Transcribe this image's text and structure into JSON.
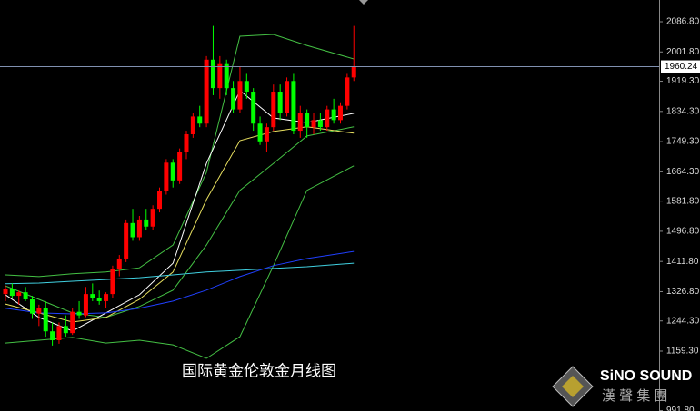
{
  "chart_data": {
    "type": "candlestick",
    "annotation": "国际黄金伦敦金月线图",
    "up_color": "#ff0000",
    "down_color": "#00ff00",
    "open": [
      1320,
      1335,
      1315,
      1325,
      1305,
      1265,
      1280,
      1215,
      1190,
      1230,
      1210,
      1270,
      1260,
      1320,
      1310,
      1300,
      1320,
      1390,
      1420,
      1520,
      1480,
      1530,
      1510,
      1560,
      1610,
      1690,
      1640,
      1720,
      1770,
      1820,
      1800,
      1980,
      1900,
      1970,
      1900,
      1840,
      1920,
      1890,
      1800,
      1750,
      1790,
      1890,
      1830,
      1920,
      1780,
      1830,
      1790,
      1810,
      1790,
      1840,
      1810,
      1850,
      1930
    ],
    "high": [
      1345,
      1350,
      1330,
      1340,
      1315,
      1290,
      1300,
      1240,
      1240,
      1260,
      1280,
      1300,
      1340,
      1350,
      1330,
      1325,
      1400,
      1430,
      1530,
      1560,
      1540,
      1560,
      1570,
      1620,
      1700,
      1700,
      1730,
      1780,
      1830,
      1850,
      1990,
      2075,
      1990,
      1980,
      1920,
      1960,
      1940,
      1900,
      1820,
      1800,
      1910,
      1910,
      1930,
      1940,
      1850,
      1840,
      1830,
      1830,
      1850,
      1870,
      1860,
      1940,
      2075
    ],
    "low": [
      1300,
      1310,
      1290,
      1300,
      1250,
      1230,
      1200,
      1175,
      1180,
      1200,
      1205,
      1250,
      1255,
      1300,
      1290,
      1280,
      1310,
      1370,
      1410,
      1470,
      1470,
      1500,
      1500,
      1550,
      1600,
      1620,
      1630,
      1700,
      1760,
      1790,
      1790,
      1880,
      1870,
      1880,
      1830,
      1830,
      1870,
      1780,
      1740,
      1720,
      1780,
      1810,
      1820,
      1770,
      1760,
      1760,
      1770,
      1780,
      1780,
      1800,
      1800,
      1840,
      1920
    ],
    "close": [
      1335,
      1315,
      1325,
      1305,
      1265,
      1280,
      1215,
      1190,
      1230,
      1210,
      1270,
      1260,
      1320,
      1310,
      1300,
      1320,
      1390,
      1420,
      1520,
      1480,
      1530,
      1510,
      1560,
      1610,
      1690,
      1640,
      1720,
      1770,
      1820,
      1800,
      1980,
      1900,
      1970,
      1900,
      1840,
      1920,
      1890,
      1800,
      1750,
      1790,
      1890,
      1830,
      1920,
      1780,
      1830,
      1790,
      1810,
      1790,
      1840,
      1810,
      1850,
      1930,
      1960
    ],
    "lines": [
      {
        "color": "#44c044",
        "x": [
          0,
          5,
          10,
          15,
          20,
          25,
          30,
          35,
          40,
          45,
          52
        ],
        "values": [
          1374,
          1369,
          1377,
          1382,
          1394,
          1458,
          1663,
          2046,
          2051,
          2020,
          1982
        ]
      },
      {
        "color": "#44c044",
        "x": [
          0,
          5,
          10,
          15,
          20,
          25,
          30,
          35,
          40,
          45,
          52
        ],
        "values": [
          1182,
          1190,
          1198,
          1182,
          1190,
          1177,
          1139,
          1200,
          1400,
          1612,
          1681
        ]
      },
      {
        "color": "#44c044",
        "x": [
          0,
          5,
          10,
          15,
          20,
          25,
          30,
          35,
          40,
          45,
          52
        ],
        "values": [
          1343,
          1305,
          1267,
          1254,
          1285,
          1331,
          1458,
          1612,
          1688,
          1765,
          1791
        ]
      },
      {
        "color": "#ffffff",
        "x": [
          0,
          5,
          10,
          15,
          20,
          25,
          30,
          35,
          40,
          45,
          52
        ],
        "values": [
          1318,
          1254,
          1216,
          1267,
          1318,
          1407,
          1688,
          1893,
          1816,
          1803,
          1829
        ]
      },
      {
        "color": "#e8e060",
        "x": [
          0,
          5,
          10,
          15,
          20,
          25,
          30,
          35,
          40,
          45,
          52
        ],
        "values": [
          1292,
          1267,
          1241,
          1254,
          1305,
          1382,
          1586,
          1752,
          1778,
          1791,
          1773
        ]
      },
      {
        "color": "#40d0e0",
        "x": [
          0,
          5,
          10,
          15,
          20,
          25,
          30,
          35,
          40,
          45,
          52
        ],
        "values": [
          1349,
          1351,
          1356,
          1361,
          1366,
          1374,
          1382,
          1387,
          1392,
          1397,
          1407
        ]
      },
      {
        "color": "#2040ff",
        "x": [
          0,
          5,
          10,
          15,
          20,
          25,
          30,
          35,
          40,
          45,
          52
        ],
        "values": [
          1280,
          1267,
          1264,
          1267,
          1280,
          1300,
          1331,
          1369,
          1400,
          1420,
          1440
        ]
      }
    ],
    "current_price": 1960.24,
    "ylim": [
      990.7,
      2148.1
    ],
    "yticks": [
      {
        "value": 2086.8,
        "label": "2086.80"
      },
      {
        "value": 2001.8,
        "label": "2001.80"
      },
      {
        "value": 1919.3,
        "label": "1919.30"
      },
      {
        "value": 1834.3,
        "label": "1834.30"
      },
      {
        "value": 1749.3,
        "label": "1749.30"
      },
      {
        "value": 1664.3,
        "label": "1664.30"
      },
      {
        "value": 1581.8,
        "label": "1581.80"
      },
      {
        "value": 1496.8,
        "label": "1496.80"
      },
      {
        "value": 1411.8,
        "label": "1411.80"
      },
      {
        "value": 1326.8,
        "label": "1326.80"
      },
      {
        "value": 1244.3,
        "label": "1244.30"
      },
      {
        "value": 1159.3,
        "label": "1159.30"
      },
      {
        "value": 991.8,
        "label": "991.80"
      }
    ]
  },
  "logo": {
    "name": "SiNO SOUND",
    "subtitle": "漢 聲 集 團"
  }
}
